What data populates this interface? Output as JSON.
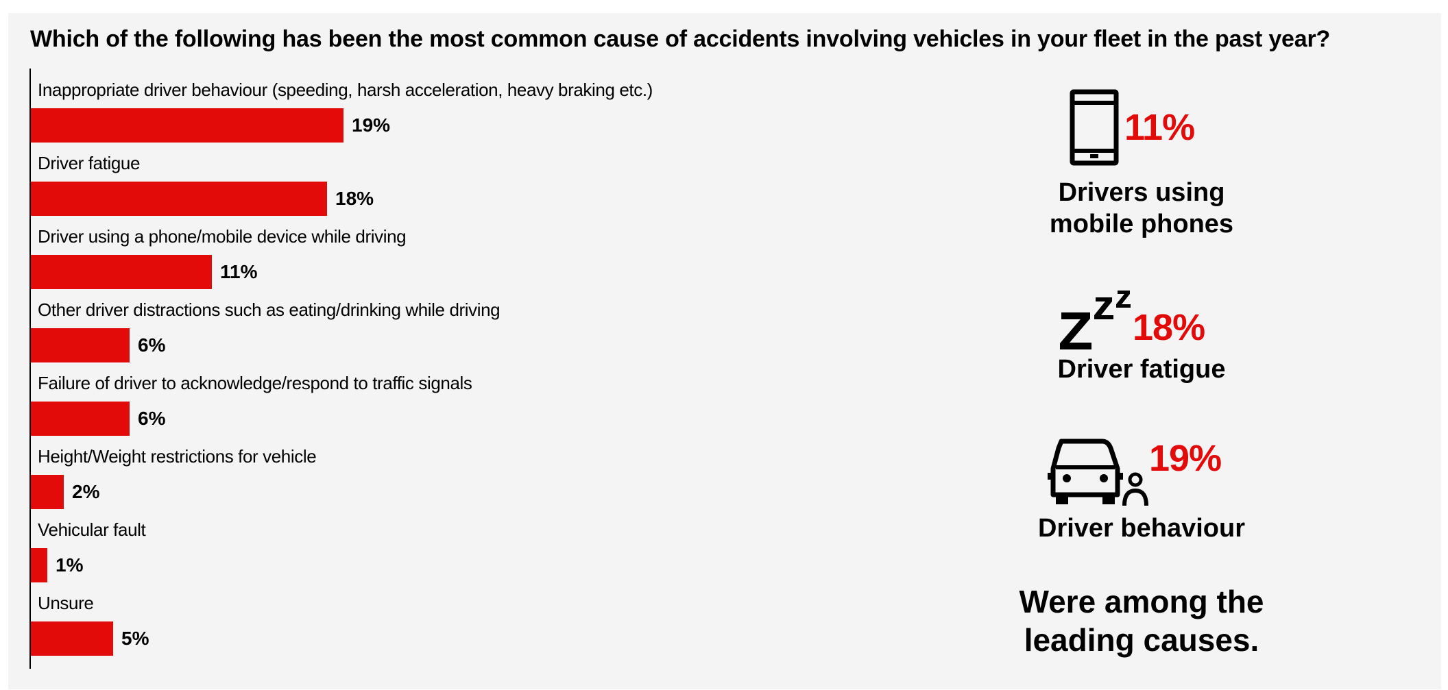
{
  "chart_data": {
    "type": "bar",
    "orientation": "horizontal",
    "title": "Which of the following has been the most common cause of accidents involving vehicles in your fleet in the past year?",
    "categories": [
      "Inappropriate driver behaviour (speeding, harsh acceleration, heavy braking etc.)",
      "Driver fatigue",
      "Driver using a phone/mobile device while driving",
      "Other driver distractions such as eating/drinking while driving",
      "Failure of driver to acknowledge/respond to traffic signals",
      "Height/Weight restrictions for vehicle",
      "Vehicular fault",
      "Unsure"
    ],
    "values": [
      19,
      18,
      11,
      6,
      6,
      2,
      1,
      5
    ],
    "value_labels": [
      "19%",
      "18%",
      "11%",
      "6%",
      "6%",
      "2%",
      "1%",
      "5%"
    ],
    "unit": "%",
    "xlim": [
      0,
      40
    ],
    "bar_color": "#e30a0a",
    "grid": false,
    "legend": "none"
  },
  "highlights": [
    {
      "icon": "mobile-phone-icon",
      "value": "11%",
      "label": "Drivers using\nmobile phones"
    },
    {
      "icon": "sleep-zzz-icon",
      "icon_text": "Z Z Z",
      "value": "18%",
      "label": "Driver fatigue"
    },
    {
      "icon": "car-driver-icon",
      "value": "19%",
      "label": "Driver behaviour"
    }
  ],
  "conclusion": "Were among the\nleading causes.",
  "colors": {
    "accent": "#e30a0a",
    "text": "#000000",
    "panel": "#f4f4f4"
  }
}
